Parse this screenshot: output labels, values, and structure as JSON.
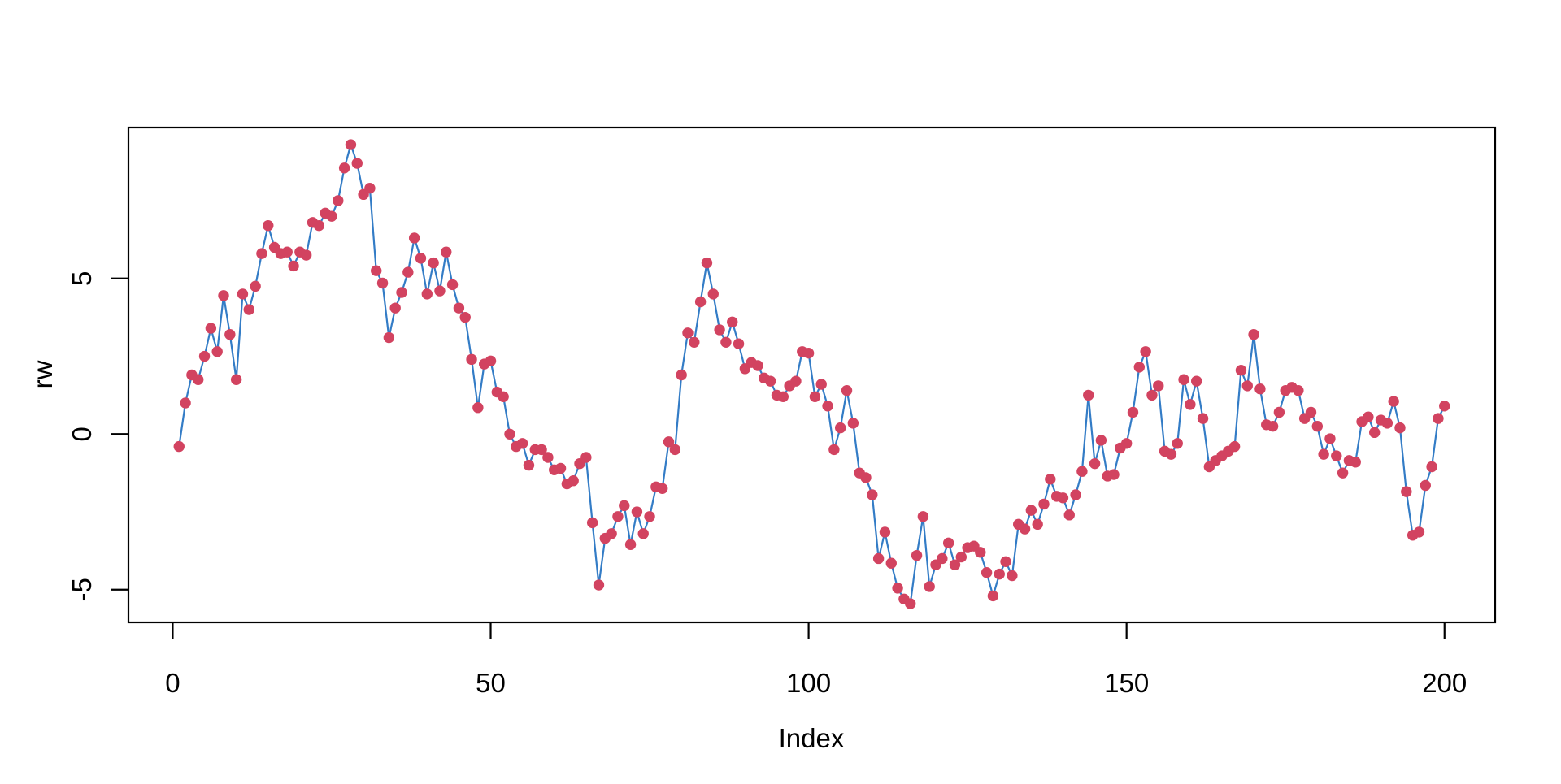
{
  "chart_data": {
    "type": "line",
    "title": "",
    "xlabel": "Index",
    "ylabel": "rw",
    "series_name": "rw",
    "marker": "filled-circle",
    "grid": false,
    "legend": null,
    "x_start": 1,
    "x_ticks": [
      0,
      50,
      100,
      150,
      200
    ],
    "y_ticks": [
      -5,
      0,
      5
    ],
    "xlim": [
      -6.96,
      207.96
    ],
    "ylim": [
      -6.05,
      9.85
    ],
    "line_color": "#337CC6",
    "point_color": "#D24360",
    "axis_color": "#000000",
    "background_color": "#ffffff",
    "values": [
      -0.4,
      1.0,
      1.9,
      1.75,
      2.5,
      3.4,
      2.65,
      4.45,
      3.2,
      1.75,
      4.5,
      4.0,
      4.75,
      5.8,
      6.7,
      6.0,
      5.8,
      5.85,
      5.4,
      5.85,
      5.75,
      6.8,
      6.7,
      7.1,
      7.0,
      7.5,
      8.55,
      9.3,
      8.7,
      7.7,
      7.9,
      5.25,
      4.85,
      3.1,
      4.05,
      4.55,
      5.2,
      6.3,
      5.65,
      4.5,
      5.5,
      4.6,
      5.85,
      4.8,
      4.05,
      3.75,
      2.4,
      0.85,
      2.25,
      2.35,
      1.35,
      1.2,
      0.0,
      -0.4,
      -0.3,
      -1.0,
      -0.5,
      -0.5,
      -0.75,
      -1.15,
      -1.1,
      -1.6,
      -1.5,
      -0.95,
      -0.75,
      -2.85,
      -4.85,
      -3.35,
      -3.2,
      -2.65,
      -2.3,
      -3.55,
      -2.5,
      -3.2,
      -2.65,
      -1.7,
      -1.75,
      -0.25,
      -0.5,
      1.9,
      3.25,
      2.95,
      4.25,
      5.5,
      4.5,
      3.35,
      2.95,
      3.6,
      2.9,
      2.1,
      2.3,
      2.2,
      1.8,
      1.7,
      1.25,
      1.2,
      1.55,
      1.7,
      2.65,
      2.6,
      1.2,
      1.6,
      0.9,
      -0.5,
      0.2,
      1.4,
      0.35,
      -1.25,
      -1.4,
      -1.95,
      -4.0,
      -3.15,
      -4.15,
      -4.95,
      -5.3,
      -5.45,
      -3.9,
      -2.65,
      -4.9,
      -4.2,
      -4.0,
      -3.5,
      -4.2,
      -3.95,
      -3.65,
      -3.6,
      -3.8,
      -4.45,
      -5.2,
      -4.5,
      -4.1,
      -4.55,
      -2.9,
      -3.05,
      -2.45,
      -2.9,
      -2.25,
      -1.45,
      -2.0,
      -2.05,
      -2.6,
      -1.95,
      -1.2,
      1.25,
      -0.95,
      -0.2,
      -1.35,
      -1.3,
      -0.45,
      -0.3,
      0.7,
      2.15,
      2.65,
      1.25,
      1.55,
      -0.55,
      -0.65,
      -0.3,
      1.75,
      0.95,
      1.7,
      0.5,
      -1.05,
      -0.85,
      -0.7,
      -0.55,
      -0.4,
      2.05,
      1.55,
      3.2,
      1.45,
      0.3,
      0.25,
      0.7,
      1.4,
      1.5,
      1.4,
      0.5,
      0.7,
      0.25,
      -0.65,
      -0.15,
      -0.7,
      -1.25,
      -0.85,
      -0.9,
      0.4,
      0.55,
      0.05,
      0.45,
      0.35,
      1.05,
      0.2,
      -1.85,
      -3.25,
      -3.15,
      -1.65,
      -1.05,
      0.5,
      0.9
    ]
  }
}
